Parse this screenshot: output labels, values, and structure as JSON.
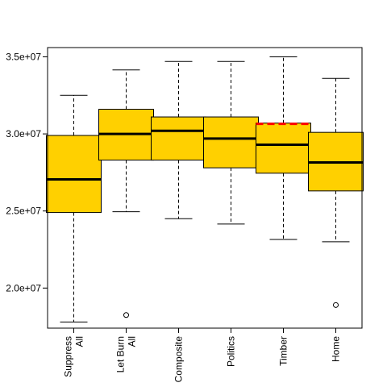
{
  "chart_data": {
    "type": "box",
    "title": "",
    "xlabel": "",
    "ylabel": "",
    "ylim": [
      17400000,
      35600000
    ],
    "y_ticks": [
      {
        "value": 20000000,
        "label": "2.0e+07"
      },
      {
        "value": 25000000,
        "label": "2.5e+07"
      },
      {
        "value": 30000000,
        "label": "3.0e+07"
      },
      {
        "value": 35000000,
        "label": "3.5e+07"
      }
    ],
    "categories": [
      {
        "lines": [
          "Suppress",
          "All"
        ]
      },
      {
        "lines": [
          "Let Burn",
          "All"
        ]
      },
      {
        "lines": [
          "Composite"
        ]
      },
      {
        "lines": [
          "Politics"
        ]
      },
      {
        "lines": [
          "Timber"
        ]
      },
      {
        "lines": [
          "Home"
        ]
      }
    ],
    "boxes": [
      {
        "whisker_low": 17800000,
        "q1": 24900000,
        "median": 27050000,
        "q3": 29900000,
        "whisker_high": 32500000,
        "outliers": []
      },
      {
        "whisker_low": 24950000,
        "q1": 28300000,
        "median": 30000000,
        "q3": 31600000,
        "whisker_high": 34150000,
        "outliers": [
          18250000
        ]
      },
      {
        "whisker_low": 24500000,
        "q1": 28300000,
        "median": 30200000,
        "q3": 31100000,
        "whisker_high": 34700000,
        "outliers": []
      },
      {
        "whisker_low": 24150000,
        "q1": 27800000,
        "median": 29700000,
        "q3": 31100000,
        "whisker_high": 34700000,
        "outliers": []
      },
      {
        "whisker_low": 23150000,
        "q1": 27450000,
        "median": 29300000,
        "q3": 30700000,
        "whisker_high": 35000000,
        "outliers": []
      },
      {
        "whisker_low": 23000000,
        "q1": 26300000,
        "median": 28150000,
        "q3": 30100000,
        "whisker_high": 33600000,
        "outliers": [
          18900000
        ]
      }
    ],
    "reference_line": {
      "category_index": 4,
      "value": 30650000,
      "color": "#ff0000",
      "style": "dashed"
    },
    "colors": {
      "box_fill": "#ffd000",
      "stroke": "#000000"
    }
  }
}
